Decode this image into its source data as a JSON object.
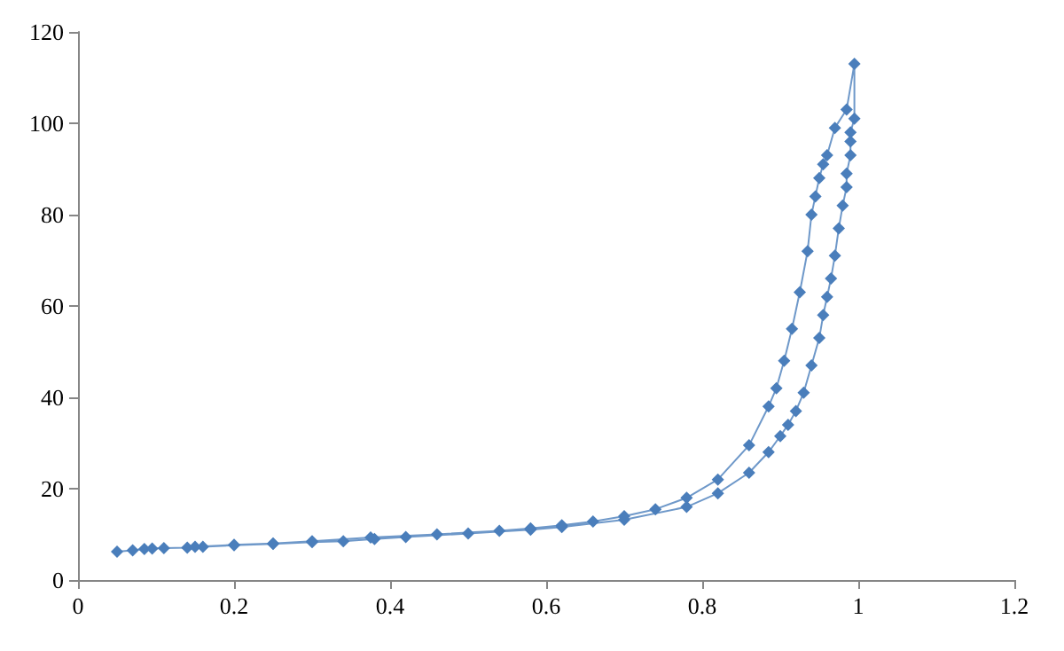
{
  "chart_data": {
    "type": "line",
    "xlim": [
      0,
      1.2
    ],
    "xticks": [
      0,
      0.2,
      0.4,
      0.6,
      0.8,
      1,
      1.2
    ],
    "ylim": [
      0,
      120
    ],
    "yticks": [
      0,
      20,
      40,
      60,
      80,
      100,
      120
    ],
    "grid": false,
    "marker": "diamond",
    "line_style": "solid",
    "series": [
      {
        "color": "#4a7ebb",
        "x": [
          0.05,
          0.07,
          0.085,
          0.095,
          0.11,
          0.14,
          0.16,
          0.2,
          0.25,
          0.3,
          0.34,
          0.38,
          0.42,
          0.5,
          0.58,
          0.62,
          0.7,
          0.78,
          0.82,
          0.86,
          0.885,
          0.9,
          0.91,
          0.92,
          0.93,
          0.94,
          0.95,
          0.955,
          0.96,
          0.965,
          0.97,
          0.975,
          0.98,
          0.985,
          0.985,
          0.99,
          0.99,
          0.99,
          0.995,
          0.995,
          0.985,
          0.97,
          0.96,
          0.955,
          0.95,
          0.945,
          0.94,
          0.935,
          0.925,
          0.915,
          0.905,
          0.895,
          0.885,
          0.86,
          0.82,
          0.78,
          0.74,
          0.7,
          0.66,
          0.62,
          0.58,
          0.54,
          0.46,
          0.375,
          0.3,
          0.25,
          0.2,
          0.15
        ],
        "values": [
          6.2,
          6.5,
          6.8,
          6.9,
          7.0,
          7.1,
          7.3,
          7.6,
          7.9,
          8.3,
          8.5,
          9.0,
          9.4,
          10.2,
          11.0,
          11.6,
          13.2,
          16,
          19,
          23.5,
          28,
          31.5,
          34,
          37,
          41,
          47,
          53,
          58,
          62,
          66,
          71,
          77,
          82,
          86,
          89,
          93,
          96,
          98,
          101,
          113,
          103,
          99,
          93,
          91,
          88,
          84,
          80,
          72,
          63,
          55,
          48,
          42,
          38,
          29.5,
          22,
          18,
          15.5,
          14,
          12.8,
          12,
          11.3,
          10.8,
          10,
          9.3,
          8.5,
          8.0,
          7.7,
          7.3
        ]
      }
    ]
  }
}
